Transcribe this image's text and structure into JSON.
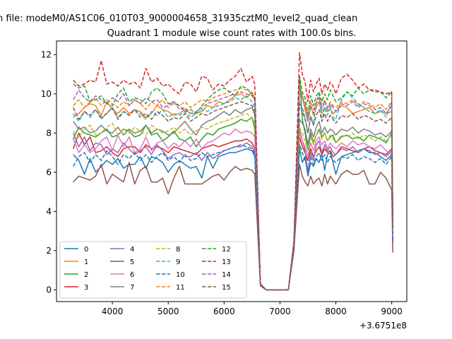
{
  "figure": {
    "suptitle": "n file: modeM0/AS1C06_010T03_9000004658_31935cztM0_level2_quad_clean",
    "title": "Quadrant 1 module wise count rates with 100.0s bins.",
    "x_offset_label": "+3.6751e8"
  },
  "chart_data": {
    "type": "line",
    "title": "Quadrant 1 module wise count rates with 100.0s bins.",
    "xlabel": "",
    "ylabel": "",
    "xlim": [
      3000,
      9270
    ],
    "ylim": [
      -0.6,
      12.7
    ],
    "x_ticks": [
      4000,
      5000,
      6000,
      7000,
      8000,
      9000
    ],
    "y_ticks": [
      0,
      2,
      4,
      6,
      8,
      10,
      12
    ],
    "grid": false,
    "legend": "lower-left",
    "legend_columns": 4,
    "x": [
      3300,
      3400,
      3500,
      3600,
      3700,
      3800,
      3900,
      4000,
      4100,
      4200,
      4300,
      4400,
      4500,
      4600,
      4700,
      4800,
      4900,
      5000,
      5100,
      5200,
      5300,
      5400,
      5500,
      5600,
      5700,
      5800,
      5900,
      6000,
      6100,
      6200,
      6300,
      6400,
      6500,
      6550,
      6650,
      6750,
      6850,
      6950,
      7050,
      7150,
      7250,
      7350,
      7400,
      7450,
      7500,
      7550,
      7600,
      7650,
      7700,
      7750,
      7800,
      7850,
      7900,
      7950,
      8000,
      8100,
      8200,
      8300,
      8400,
      8500,
      8600,
      8700,
      8800,
      8900,
      9000,
      9020
    ],
    "series": [
      {
        "name": "0",
        "color": "#1f77b4",
        "dash": "solid",
        "values": [
          6.9,
          6.6,
          5.9,
          6.7,
          6.0,
          6.3,
          6.6,
          6.4,
          6.7,
          6.2,
          6.4,
          6.4,
          6.8,
          6.2,
          6.8,
          6.7,
          6.5,
          6.0,
          6.4,
          6.6,
          6.4,
          6.2,
          6.3,
          5.7,
          6.8,
          6.2,
          6.8,
          6.9,
          7.0,
          7.0,
          7.1,
          7.2,
          7.1,
          6.8,
          0.3,
          0.0,
          0.0,
          0.0,
          0.0,
          0.0,
          2.4,
          7.2,
          6.5,
          6.8,
          5.8,
          6.5,
          6.3,
          6.7,
          6.5,
          6.9,
          6.1,
          6.9,
          7.0,
          6.5,
          5.9,
          6.8,
          6.9,
          7.0,
          7.1,
          7.2,
          7.0,
          7.0,
          6.8,
          6.6,
          6.9,
          2.4
        ]
      },
      {
        "name": "1",
        "color": "#ff7f0e",
        "dash": "solid",
        "values": [
          8.8,
          9.0,
          9.3,
          9.5,
          9.4,
          8.9,
          9.6,
          9.2,
          9.0,
          9.3,
          9.0,
          9.2,
          9.1,
          8.8,
          9.0,
          9.4,
          9.2,
          9.1,
          8.9,
          9.0,
          9.2,
          9.0,
          9.0,
          9.1,
          9.4,
          9.3,
          9.6,
          9.5,
          9.7,
          9.9,
          10.0,
          9.8,
          10.1,
          9.6,
          0.3,
          0.0,
          0.0,
          0.0,
          0.0,
          0.0,
          2.4,
          10.5,
          9.8,
          9.2,
          8.6,
          9.4,
          8.9,
          9.3,
          9.6,
          9.0,
          9.3,
          9.1,
          9.2,
          9.0,
          9.1,
          9.4,
          9.3,
          9.0,
          9.1,
          9.2,
          9.3,
          9.0,
          9.1,
          9.0,
          9.1,
          3.6
        ]
      },
      {
        "name": "2",
        "color": "#2ca02c",
        "dash": "solid",
        "values": [
          7.7,
          8.3,
          8.0,
          7.9,
          7.8,
          8.0,
          8.2,
          7.8,
          7.9,
          8.2,
          8.1,
          7.8,
          7.9,
          8.4,
          7.9,
          8.0,
          7.6,
          7.8,
          8.1,
          7.7,
          7.6,
          7.8,
          7.3,
          7.7,
          8.0,
          7.9,
          8.2,
          8.3,
          8.4,
          8.5,
          8.7,
          8.6,
          8.8,
          8.2,
          0.3,
          0.0,
          0.0,
          0.0,
          0.0,
          0.0,
          2.3,
          10.9,
          8.7,
          8.0,
          7.1,
          8.0,
          7.5,
          7.9,
          8.2,
          7.8,
          8.0,
          7.6,
          7.8,
          7.9,
          7.5,
          7.8,
          7.9,
          7.7,
          7.8,
          7.6,
          7.9,
          7.8,
          7.7,
          7.5,
          8.0,
          2.8
        ]
      },
      {
        "name": "3",
        "color": "#d62728",
        "dash": "solid",
        "values": [
          7.2,
          8.0,
          7.4,
          7.8,
          7.0,
          7.1,
          7.3,
          7.0,
          6.8,
          7.2,
          7.3,
          7.3,
          7.0,
          7.4,
          7.2,
          7.3,
          7.2,
          7.0,
          7.3,
          7.2,
          7.1,
          7.0,
          6.9,
          7.2,
          7.3,
          7.4,
          7.3,
          7.4,
          7.5,
          7.6,
          7.6,
          7.7,
          7.5,
          7.2,
          0.3,
          0.0,
          0.0,
          0.0,
          0.0,
          0.0,
          2.4,
          7.8,
          7.3,
          7.0,
          6.6,
          7.2,
          6.8,
          7.1,
          7.3,
          6.9,
          7.2,
          7.0,
          7.1,
          6.8,
          6.9,
          7.3,
          7.2,
          7.1,
          7.0,
          7.2,
          7.3,
          7.1,
          7.0,
          6.9,
          7.2,
          2.6
        ]
      },
      {
        "name": "4",
        "color": "#9467bd",
        "dash": "solid",
        "values": [
          8.0,
          7.3,
          7.8,
          7.1,
          7.5,
          7.4,
          6.9,
          7.2,
          7.0,
          7.5,
          7.2,
          6.9,
          7.1,
          7.3,
          6.9,
          7.4,
          7.1,
          6.7,
          6.9,
          7.0,
          6.8,
          6.8,
          7.0,
          6.6,
          7.0,
          6.7,
          6.9,
          7.1,
          7.2,
          7.3,
          7.3,
          7.5,
          7.3,
          7.0,
          0.3,
          0.0,
          0.0,
          0.0,
          0.0,
          0.0,
          2.3,
          8.2,
          7.6,
          7.1,
          6.0,
          7.0,
          6.6,
          7.4,
          7.6,
          7.0,
          7.4,
          7.1,
          7.3,
          7.0,
          6.9,
          7.2,
          7.1,
          7.3,
          7.0,
          7.2,
          7.1,
          6.9,
          7.0,
          6.8,
          7.1,
          2.7
        ]
      },
      {
        "name": "5",
        "color": "#8c564b",
        "dash": "solid",
        "values": [
          5.5,
          5.8,
          5.7,
          5.6,
          5.8,
          6.4,
          5.4,
          5.9,
          5.7,
          5.5,
          6.5,
          5.4,
          6.1,
          6.3,
          5.5,
          5.5,
          5.7,
          4.9,
          5.7,
          6.3,
          5.4,
          5.4,
          5.4,
          5.4,
          5.6,
          5.8,
          5.9,
          5.6,
          6.0,
          6.3,
          6.1,
          6.2,
          6.1,
          5.9,
          0.2,
          0.0,
          0.0,
          0.0,
          0.0,
          0.0,
          2.0,
          6.4,
          5.8,
          5.5,
          5.3,
          5.8,
          5.4,
          5.6,
          5.7,
          5.3,
          5.9,
          5.4,
          5.8,
          5.6,
          5.4,
          5.9,
          6.1,
          5.9,
          5.9,
          6.1,
          5.4,
          5.4,
          6.0,
          5.7,
          5.1,
          1.9
        ]
      },
      {
        "name": "6",
        "color": "#e377c2",
        "dash": "solid",
        "values": [
          7.7,
          7.0,
          7.4,
          7.0,
          7.2,
          7.6,
          7.8,
          7.1,
          7.9,
          7.3,
          7.8,
          7.0,
          7.2,
          7.8,
          7.1,
          7.5,
          7.6,
          7.2,
          7.5,
          7.3,
          7.6,
          7.3,
          7.7,
          7.2,
          7.5,
          7.6,
          7.8,
          8.0,
          7.9,
          8.2,
          8.0,
          8.1,
          8.0,
          7.8,
          0.3,
          0.0,
          0.0,
          0.0,
          0.0,
          0.0,
          2.4,
          8.0,
          7.6,
          7.3,
          6.8,
          7.5,
          7.1,
          7.6,
          7.8,
          7.4,
          7.6,
          7.2,
          7.5,
          7.3,
          7.2,
          7.5,
          7.3,
          7.6,
          7.4,
          7.5,
          7.3,
          7.2,
          7.4,
          7.1,
          6.9,
          2.7
        ]
      },
      {
        "name": "7",
        "color": "#7f7f7f",
        "dash": "solid",
        "values": [
          8.6,
          8.2,
          8.3,
          8.0,
          8.1,
          8.4,
          8.1,
          8.0,
          8.3,
          7.9,
          8.2,
          8.0,
          8.1,
          8.4,
          8.0,
          8.2,
          8.1,
          7.9,
          8.0,
          8.3,
          8.6,
          8.2,
          7.9,
          8.4,
          8.6,
          8.7,
          8.9,
          9.1,
          8.9,
          9.2,
          9.0,
          9.2,
          9.3,
          8.9,
          0.3,
          0.0,
          0.0,
          0.0,
          0.0,
          0.0,
          2.4,
          8.7,
          8.5,
          8.2,
          7.4,
          8.2,
          7.8,
          8.3,
          8.6,
          8.0,
          8.3,
          8.0,
          8.2,
          8.1,
          7.9,
          8.2,
          8.1,
          8.3,
          8.0,
          8.2,
          8.1,
          7.9,
          8.0,
          7.8,
          8.1,
          3.0
        ]
      },
      {
        "name": "8",
        "color": "#bcbd22",
        "dash": "dashed",
        "values": [
          8.1,
          7.8,
          8.2,
          8.4,
          7.9,
          8.0,
          8.3,
          8.5,
          7.9,
          8.2,
          8.0,
          8.3,
          8.1,
          7.9,
          8.4,
          8.2,
          8.0,
          8.1,
          8.3,
          8.0,
          8.2,
          7.9,
          8.1,
          8.3,
          8.2,
          8.4,
          8.5,
          8.6,
          8.7,
          8.8,
          8.9,
          9.0,
          8.8,
          8.5,
          0.3,
          0.0,
          0.0,
          0.0,
          0.0,
          0.0,
          2.4,
          8.3,
          8.0,
          7.6,
          7.1,
          7.8,
          7.4,
          7.9,
          8.1,
          7.7,
          8.0,
          7.6,
          7.9,
          7.7,
          7.5,
          7.9,
          7.8,
          8.0,
          7.7,
          7.9,
          7.8,
          7.6,
          7.8,
          7.6,
          7.9,
          2.9
        ]
      },
      {
        "name": "9",
        "color": "#17becf",
        "dash": "dashed",
        "values": [
          9.0,
          8.6,
          9.1,
          8.8,
          9.2,
          8.7,
          9.0,
          9.3,
          8.8,
          9.1,
          8.9,
          9.2,
          9.0,
          8.7,
          9.1,
          8.9,
          9.2,
          8.8,
          9.0,
          8.9,
          9.1,
          8.8,
          9.0,
          9.2,
          9.1,
          9.3,
          9.4,
          9.5,
          9.6,
          9.8,
          9.7,
          9.9,
          9.6,
          9.3,
          0.3,
          0.0,
          0.0,
          0.0,
          0.0,
          0.0,
          2.4,
          9.6,
          9.3,
          8.8,
          8.0,
          8.9,
          8.4,
          9.6,
          10.0,
          8.6,
          9.3,
          8.9,
          9.4,
          8.8,
          8.7,
          9.7,
          10.1,
          9.8,
          9.5,
          9.3,
          9.1,
          9.0,
          9.2,
          8.8,
          9.6,
          3.3
        ]
      },
      {
        "name": "10",
        "color": "#1f77b4",
        "dash": "dashed",
        "values": [
          6.3,
          6.8,
          7.0,
          6.5,
          6.9,
          6.6,
          7.1,
          6.8,
          6.4,
          6.9,
          6.7,
          7.0,
          6.6,
          6.9,
          6.5,
          6.8,
          7.0,
          6.6,
          6.8,
          6.5,
          6.9,
          6.6,
          6.7,
          7.0,
          6.8,
          6.9,
          7.0,
          7.1,
          7.2,
          7.3,
          7.4,
          7.3,
          7.2,
          6.9,
          0.3,
          0.0,
          0.0,
          0.0,
          0.0,
          0.0,
          2.3,
          7.4,
          7.0,
          6.6,
          6.1,
          6.8,
          6.4,
          6.8,
          7.0,
          6.6,
          6.9,
          6.5,
          6.8,
          6.6,
          6.5,
          6.8,
          6.7,
          6.9,
          6.6,
          6.8,
          6.7,
          6.5,
          6.7,
          6.4,
          6.8,
          2.5
        ]
      },
      {
        "name": "11",
        "color": "#ff7f0e",
        "dash": "dashed",
        "values": [
          9.4,
          9.7,
          9.3,
          9.6,
          9.8,
          9.4,
          9.7,
          9.5,
          9.3,
          9.6,
          9.4,
          9.7,
          9.5,
          9.2,
          9.6,
          9.4,
          9.7,
          9.3,
          9.5,
          9.4,
          9.6,
          9.3,
          9.5,
          9.7,
          9.6,
          9.8,
          9.9,
          10.0,
          10.1,
          10.2,
          10.3,
          10.2,
          10.0,
          9.8,
          0.3,
          0.0,
          0.0,
          0.0,
          0.0,
          0.0,
          2.5,
          10.4,
          9.9,
          9.5,
          8.8,
          9.6,
          9.2,
          9.6,
          9.9,
          9.4,
          9.7,
          9.3,
          9.6,
          9.4,
          9.3,
          9.6,
          9.5,
          9.7,
          9.4,
          9.6,
          9.5,
          9.3,
          9.5,
          9.2,
          9.6,
          3.4
        ]
      },
      {
        "name": "12",
        "color": "#2ca02c",
        "dash": "dashed",
        "values": [
          10.5,
          10.3,
          10.4,
          9.6,
          9.7,
          9.9,
          9.5,
          9.4,
          10.0,
          10.3,
          9.6,
          9.8,
          9.7,
          9.5,
          10.1,
          10.3,
          10.0,
          9.5,
          9.6,
          9.4,
          9.1,
          9.2,
          9.0,
          9.4,
          9.7,
          10.0,
          10.2,
          10.3,
          10.1,
          9.9,
          10.4,
          10.3,
          10.0,
          9.8,
          0.3,
          0.0,
          0.0,
          0.0,
          0.0,
          0.0,
          2.4,
          10.9,
          10.1,
          9.8,
          9.0,
          9.9,
          9.4,
          9.9,
          10.1,
          9.6,
          10.0,
          9.7,
          10.2,
          9.9,
          9.6,
          9.8,
          10.1,
          9.9,
          10.3,
          10.0,
          10.2,
          10.1,
          10.1,
          9.8,
          10.1,
          3.5
        ]
      },
      {
        "name": "13",
        "color": "#d62728",
        "dash": "dashed",
        "values": [
          10.7,
          10.4,
          10.5,
          10.7,
          10.6,
          11.7,
          10.5,
          10.6,
          10.4,
          10.7,
          10.5,
          10.6,
          10.3,
          11.3,
          10.6,
          10.8,
          10.4,
          10.5,
          10.2,
          10.0,
          10.6,
          10.5,
          10.1,
          10.9,
          10.8,
          10.2,
          10.5,
          10.4,
          10.7,
          10.9,
          11.3,
          10.6,
          10.9,
          10.5,
          0.3,
          0.0,
          0.0,
          0.0,
          0.0,
          0.0,
          2.5,
          12.1,
          11.0,
          10.6,
          9.6,
          10.7,
          10.1,
          10.5,
          10.8,
          10.0,
          10.5,
          10.2,
          10.6,
          10.4,
          10.0,
          10.8,
          11.0,
          10.7,
          10.3,
          10.5,
          10.2,
          10.2,
          10.1,
          10.0,
          10.1,
          3.6
        ]
      },
      {
        "name": "14",
        "color": "#9467bd",
        "dash": "dashed",
        "values": [
          9.7,
          10.2,
          9.8,
          9.6,
          9.9,
          9.7,
          9.5,
          9.8,
          9.6,
          10.0,
          9.4,
          9.7,
          9.5,
          9.8,
          9.6,
          9.7,
          9.3,
          9.4,
          9.6,
          9.2,
          9.3,
          9.0,
          9.1,
          9.3,
          9.5,
          9.6,
          9.7,
          9.8,
          9.9,
          10.0,
          10.1,
          10.0,
          9.9,
          9.7,
          0.3,
          0.0,
          0.0,
          0.0,
          0.0,
          0.0,
          2.4,
          10.3,
          9.8,
          9.4,
          8.6,
          9.4,
          9.0,
          9.5,
          9.8,
          9.2,
          9.6,
          9.2,
          9.5,
          9.3,
          9.1,
          9.5,
          9.4,
          9.6,
          9.3,
          9.5,
          9.4,
          9.2,
          9.3,
          9.0,
          9.4,
          3.3
        ]
      },
      {
        "name": "15",
        "color": "#8c564b",
        "dash": "dashed",
        "values": [
          9.3,
          8.7,
          9.1,
          8.9,
          9.2,
          8.8,
          9.0,
          9.3,
          8.7,
          9.1,
          8.9,
          9.2,
          8.8,
          9.0,
          8.7,
          9.1,
          8.9,
          8.6,
          8.8,
          8.7,
          9.0,
          8.6,
          8.8,
          9.0,
          8.9,
          9.1,
          9.2,
          9.3,
          9.4,
          9.5,
          9.6,
          9.5,
          9.4,
          9.1,
          0.3,
          0.0,
          0.0,
          0.0,
          0.0,
          0.0,
          2.4,
          9.5,
          9.1,
          8.7,
          8.0,
          8.8,
          8.4,
          8.9,
          9.2,
          8.6,
          9.0,
          8.6,
          8.9,
          8.7,
          8.5,
          8.9,
          8.8,
          9.0,
          8.7,
          8.9,
          8.8,
          8.6,
          8.7,
          8.5,
          8.8,
          3.1
        ]
      }
    ]
  }
}
